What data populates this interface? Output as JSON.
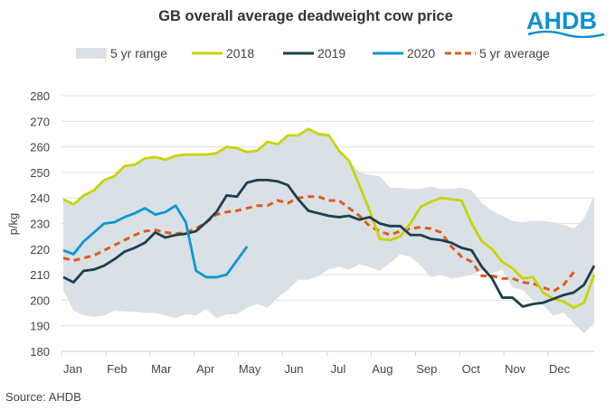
{
  "logo_text": "AHDB",
  "source": "Source: AHDB",
  "chart_data": {
    "type": "line",
    "title": "GB overall average deadweight cow price",
    "ylabel": "p/kg",
    "xlabel": "",
    "ylim": [
      180,
      280
    ],
    "yticks": [
      180,
      190,
      200,
      210,
      220,
      230,
      240,
      250,
      260,
      270,
      280
    ],
    "xlim": [
      1,
      53
    ],
    "x_unit": "week of year",
    "month_labels": [
      "Jan",
      "Feb",
      "Mar",
      "Apr",
      "May",
      "Jun",
      "Jul",
      "Aug",
      "Sep",
      "Oct",
      "Nov",
      "Dec"
    ],
    "grid": true,
    "legend": "top",
    "range": {
      "name": "5 yr range",
      "color": "#d9e1e6",
      "upper": [
        239.5,
        237.5,
        241,
        243,
        247,
        248.5,
        252.5,
        253,
        255.5,
        256,
        255,
        256.5,
        257,
        257,
        257,
        257.5,
        260,
        259.5,
        258,
        258.5,
        262,
        261,
        264.5,
        264.5,
        267,
        265,
        264.5,
        258.5,
        254.5,
        250,
        249,
        248.5,
        244,
        244,
        243.5,
        243.5,
        244.5,
        243.5,
        243.5,
        244,
        243,
        238,
        235,
        233,
        231,
        230.5,
        231,
        231,
        230.5,
        229.5,
        228,
        232,
        241
      ],
      "lower": [
        204,
        196,
        194,
        193.5,
        194,
        196,
        195.5,
        195.5,
        195,
        195,
        194,
        193,
        194.5,
        194,
        196.5,
        193,
        194.5,
        194.5,
        197,
        198.5,
        197,
        201,
        204,
        208,
        208,
        209.5,
        212,
        213,
        212,
        214,
        213,
        211.5,
        214.5,
        218,
        217,
        213.5,
        209,
        210,
        208.5,
        209,
        210,
        211.5,
        210.5,
        212,
        205,
        204,
        200,
        198,
        194,
        195,
        191,
        187,
        191
      ]
    },
    "series": [
      {
        "name": "2018",
        "color": "#c8d400",
        "dash": false,
        "values": [
          239.5,
          237.5,
          241,
          243,
          247,
          248.5,
          252.5,
          253,
          255.5,
          256,
          255,
          256.5,
          257,
          257,
          257,
          257.5,
          260,
          259.5,
          258,
          258.5,
          262,
          261,
          264.5,
          264.5,
          267,
          265,
          264.5,
          258.5,
          254.5,
          245,
          235,
          224,
          223.5,
          225,
          230,
          236.5,
          238.5,
          240,
          239.5,
          239,
          230,
          223,
          220,
          215,
          212.5,
          208.5,
          209,
          203,
          200.5,
          199.5,
          197,
          199,
          210
        ]
      },
      {
        "name": "2019",
        "color": "#1d3f4c",
        "dash": false,
        "values": [
          209,
          207,
          211.5,
          212,
          213.5,
          216,
          219,
          220.5,
          222.5,
          226.5,
          224.5,
          225.5,
          226,
          227,
          230.5,
          234.5,
          241,
          240.5,
          246,
          247,
          247,
          246.5,
          245,
          239.5,
          235,
          234,
          233,
          232.5,
          233,
          231.5,
          232.5,
          230,
          229,
          229,
          225.5,
          225.5,
          224,
          223.5,
          222.5,
          220.5,
          219.5,
          213,
          208.5,
          201,
          201,
          197.5,
          198.5,
          199,
          200.5,
          202,
          203,
          206,
          213.5
        ]
      },
      {
        "name": "2020",
        "color": "#0f96d3",
        "dash": false,
        "values": [
          219.5,
          218,
          223,
          226.5,
          230,
          230.5,
          232.5,
          234,
          236,
          233.5,
          234.5,
          237,
          230.5,
          211.5,
          209,
          209,
          210,
          215.5,
          221
        ]
      },
      {
        "name": "5 yr average",
        "color": "#e05a1c",
        "dash": true,
        "values": [
          216.5,
          215.5,
          216.5,
          217.5,
          219.5,
          221.5,
          223.5,
          225.5,
          227,
          227.5,
          226.5,
          226,
          226.5,
          228,
          230.5,
          233.5,
          234.5,
          235,
          236,
          237,
          237,
          239,
          238,
          240,
          240.5,
          240.5,
          239,
          239,
          236,
          233,
          229,
          227,
          225.5,
          227,
          228,
          228.5,
          228,
          226.5,
          221,
          217,
          215,
          209.5,
          209.5,
          208.5,
          208.5,
          207,
          206.5,
          205,
          203.5,
          206,
          211
        ]
      }
    ]
  }
}
